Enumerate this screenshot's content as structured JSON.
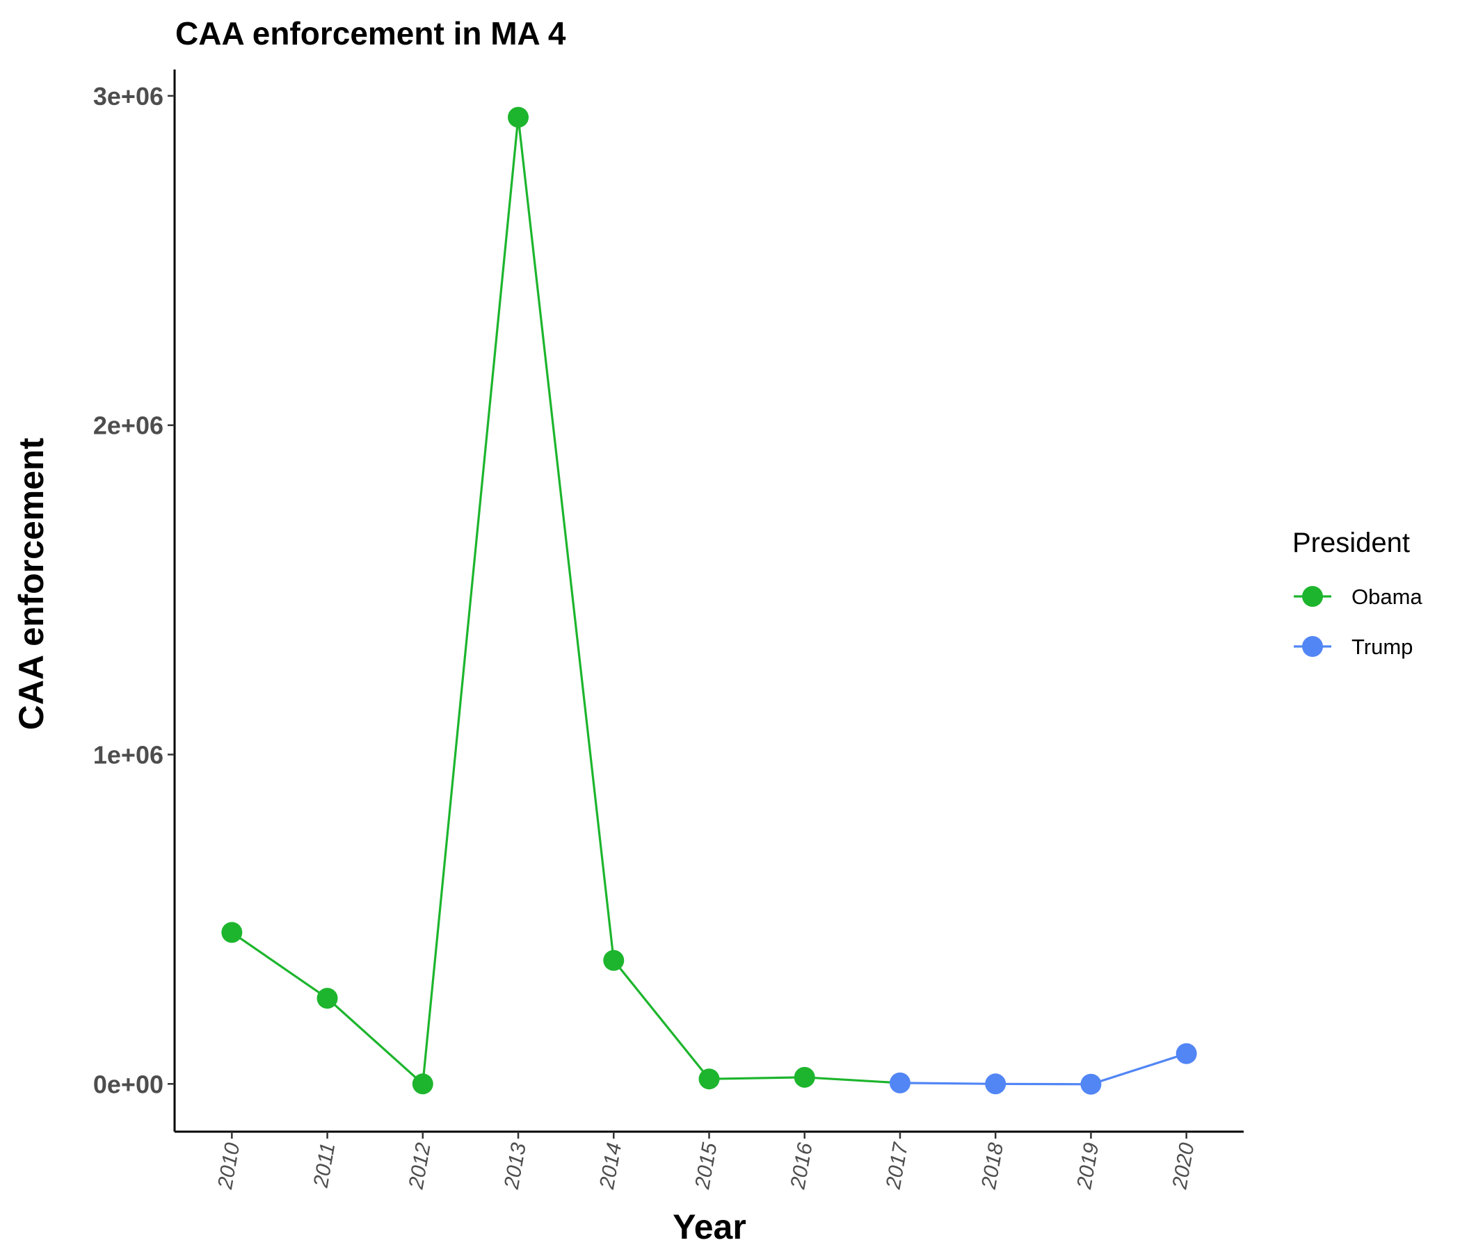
{
  "chart_data": {
    "type": "line",
    "title": "CAA enforcement in MA 4",
    "xlabel": "Year",
    "ylabel": "CAA enforcement",
    "x": [
      2010,
      2011,
      2012,
      2013,
      2014,
      2015,
      2016,
      2017,
      2018,
      2019,
      2020
    ],
    "x_tick_labels": [
      "2010",
      "2011",
      "2012",
      "2013",
      "2014",
      "2015",
      "2016",
      "2017",
      "2018",
      "2019",
      "2020"
    ],
    "y_ticks": [
      0,
      1000000,
      2000000,
      3000000
    ],
    "y_tick_labels": [
      "0e+00",
      "1e+06",
      "2e+06",
      "3e+06"
    ],
    "ylim": [
      -145000,
      3080000
    ],
    "grid": false,
    "series": [
      {
        "name": "Obama",
        "color": "#1db52d",
        "x": [
          2010,
          2011,
          2012,
          2013,
          2014,
          2015,
          2016,
          2017
        ],
        "y": [
          460000,
          260000,
          0,
          2935000,
          375000,
          15000,
          20000,
          3000
        ],
        "markers": [
          true,
          true,
          true,
          true,
          true,
          true,
          true,
          false
        ]
      },
      {
        "name": "Trump",
        "color": "#5286f5",
        "x": [
          2017,
          2018,
          2019,
          2020
        ],
        "y": [
          3000,
          0,
          -1000,
          92000
        ],
        "markers": [
          true,
          true,
          true,
          true
        ]
      }
    ],
    "legend": {
      "title": "President",
      "position": "right",
      "entries": [
        "Obama",
        "Trump"
      ]
    }
  }
}
